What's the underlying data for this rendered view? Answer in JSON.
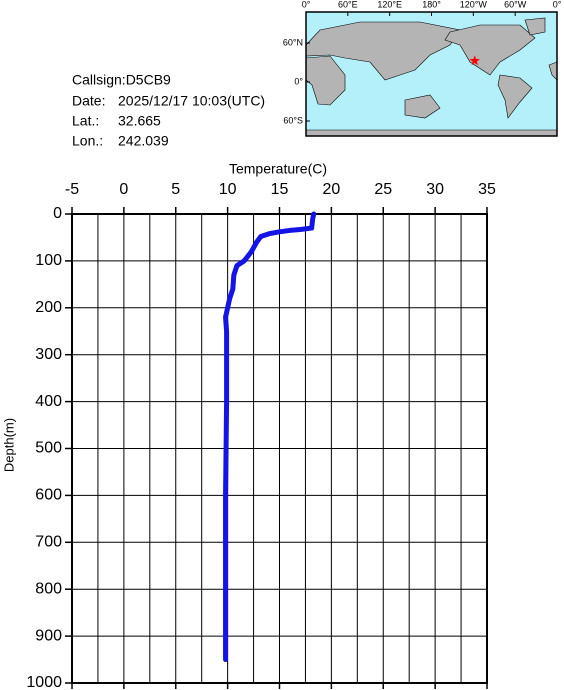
{
  "chart_data": {
    "type": "line",
    "x_label": "Temperature(C)",
    "y_label": "Depth(m)",
    "series": [
      {
        "name": "Temperature",
        "color": "#1414e6",
        "x": [
          18.3,
          18.2,
          18.1,
          17.0,
          16.0,
          15.0,
          14.0,
          13.2,
          12.8,
          12.3,
          11.6,
          10.9,
          10.6,
          10.5,
          10.2,
          10.0,
          9.8,
          9.9,
          9.9,
          9.8,
          9.8,
          9.8
        ],
        "values": [
          0,
          10,
          30,
          33,
          35,
          38,
          42,
          48,
          60,
          80,
          100,
          110,
          130,
          160,
          180,
          200,
          220,
          250,
          400,
          600,
          800,
          950
        ]
      }
    ],
    "xlim": [
      -5,
      35
    ],
    "xticks": [
      -5,
      0,
      5,
      10,
      15,
      20,
      25,
      30,
      35
    ],
    "xgrid": [
      -5,
      -2.5,
      0,
      2.5,
      5,
      7.5,
      10,
      12.5,
      15,
      17.5,
      20,
      22.5,
      25,
      27.5,
      30,
      32.5,
      35
    ],
    "ylim": [
      0,
      1000
    ],
    "yticks": [
      0,
      100,
      200,
      300,
      400,
      500,
      600,
      700,
      800,
      900,
      1000
    ],
    "grid": true,
    "y_inverted": true
  },
  "info": {
    "callsign": "Callsign:D5CB9",
    "date_label": "Date:",
    "date": "2025/12/17 10:03(UTC)",
    "lat_label": "Lat.:",
    "lat": 32.665,
    "lon_label": "Lon.:",
    "lon": 242.039
  },
  "map": {
    "lon_ticks": [
      {
        "value": 0,
        "label": "0°"
      },
      {
        "value": 60,
        "label": "60°E"
      },
      {
        "value": 120,
        "label": "120°E"
      },
      {
        "value": 180,
        "label": "180°"
      },
      {
        "value": 240,
        "label": "120°W"
      },
      {
        "value": 300,
        "label": "60°W"
      },
      {
        "value": 360,
        "label": "0°"
      }
    ],
    "lat_ticks": [
      {
        "value": 60,
        "label": "60°N"
      },
      {
        "value": 0,
        "label": "0°"
      },
      {
        "value": -60,
        "label": "60°S"
      }
    ],
    "marker_color": "#ff0000"
  }
}
